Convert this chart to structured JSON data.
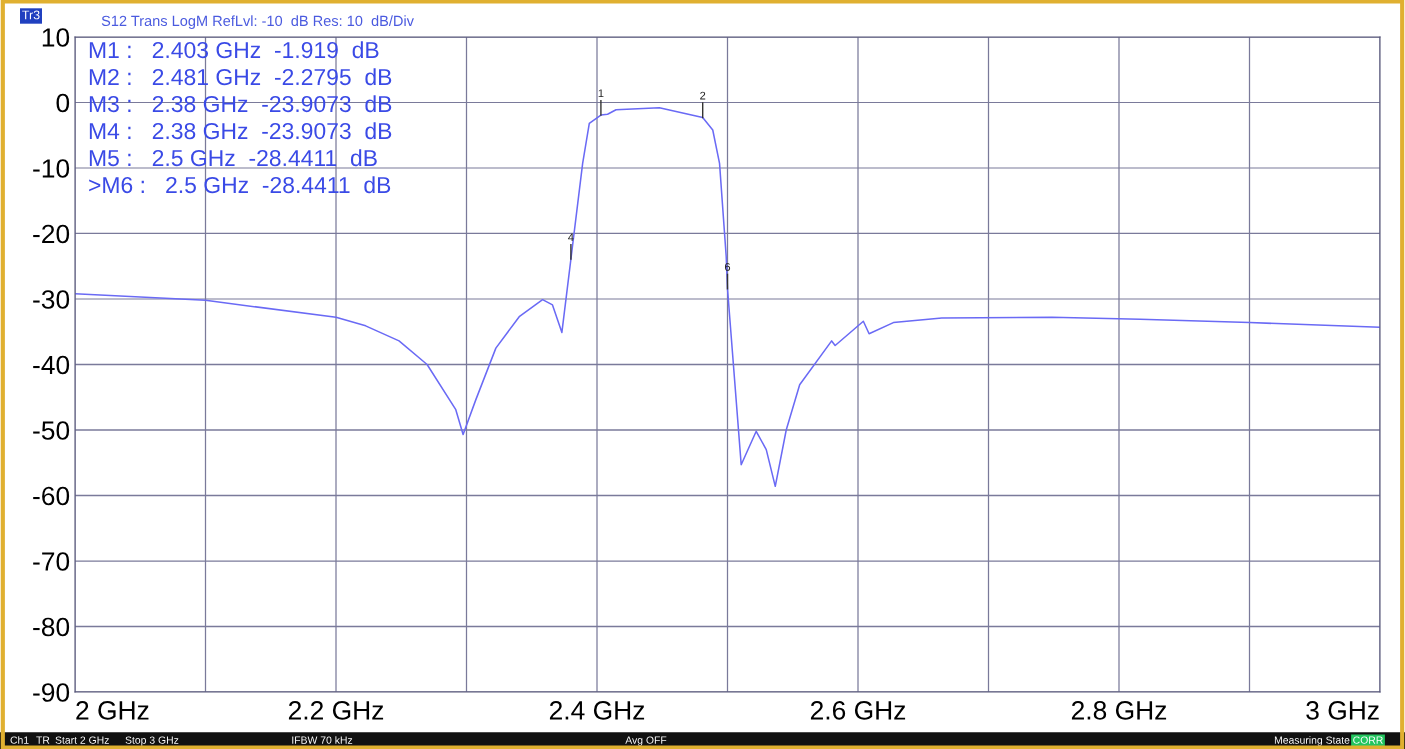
{
  "chart_data": {
    "type": "line",
    "title": "S12 Trans LogM RefLvl: -10  dB Res: 10  dB/Div",
    "x": [
      2.0,
      2.1,
      2.2,
      2.2227,
      2.2483,
      2.2698,
      2.2918,
      2.2974,
      2.3071,
      2.3225,
      2.3404,
      2.3583,
      2.3659,
      2.3731,
      2.38,
      2.389,
      2.3941,
      2.403,
      2.4081,
      2.4146,
      2.4478,
      2.481,
      2.4887,
      2.4939,
      2.499,
      2.5,
      2.5105,
      2.522,
      2.5297,
      2.5366,
      2.545,
      2.5553,
      2.5798,
      2.5825,
      2.6041,
      2.6085,
      2.6271,
      2.6642,
      2.7487,
      2.8162,
      2.9,
      3.0
    ],
    "series": [
      {
        "color": "#6a6af5",
        "values": [
          -29.2,
          -30.2,
          -32.8,
          -34.1,
          -36.4,
          -40.0,
          -46.9,
          -50.7,
          -45.4,
          -37.5,
          -32.7,
          -30.1,
          -30.9,
          -35.1,
          -23.9,
          -9.3,
          -3.2,
          -1.919,
          -1.8,
          -1.1,
          -0.8,
          -2.2795,
          -4.2,
          -9.3,
          -23.5,
          -28.4411,
          -55.3,
          -50.2,
          -53.0,
          -58.6,
          -50.0,
          -43.1,
          -36.4,
          -37.1,
          -33.4,
          -35.3,
          -33.6,
          -32.9,
          -32.8,
          -33.1,
          -33.6,
          -34.3
        ]
      }
    ],
    "xlim": [
      2.0,
      3.0
    ],
    "xticks": [
      {
        "value": 2.0,
        "label": "2 GHz"
      },
      {
        "value": 2.1,
        "label": null
      },
      {
        "value": 2.2,
        "label": "2.2 GHz"
      },
      {
        "value": 2.3,
        "label": null
      },
      {
        "value": 2.4,
        "label": "2.4 GHz"
      },
      {
        "value": 2.5,
        "label": null
      },
      {
        "value": 2.6,
        "label": "2.6 GHz"
      },
      {
        "value": 2.7,
        "label": null
      },
      {
        "value": 2.8,
        "label": "2.8 GHz"
      },
      {
        "value": 2.9,
        "label": null
      },
      {
        "value": 3.0,
        "label": "3 GHz"
      }
    ],
    "ylim": [
      -90,
      10
    ],
    "yticks": [
      -90,
      -80,
      -70,
      -60,
      -50,
      -40,
      -30,
      -20,
      -10,
      0,
      10
    ],
    "grid": true,
    "line_style": "solid",
    "marker": "none",
    "annotations": [
      {
        "text": "1",
        "x": 2.403,
        "y": -1.919
      },
      {
        "text": "2",
        "x": 2.481,
        "y": -2.2795
      },
      {
        "text": "4",
        "x": 2.38,
        "y": -23.9073
      },
      {
        "text": "6",
        "x": 2.5,
        "y": -28.4411
      },
      "M1 :   2.403 GHz  -1.919  dB",
      "M2 :   2.481 GHz  -2.2795  dB",
      "M3 :   2.38 GHz  -23.9073  dB",
      "M4 :   2.38 GHz  -23.9073  dB",
      "M5 :   2.5 GHz  -28.4411  dB",
      ">M6 :   2.5 GHz  -28.4411  dB",
      "Tr3",
      "Ch1",
      "TR",
      "Start 2 GHz",
      "Stop 3 GHz",
      "IFBW 70 kHz",
      "Avg OFF",
      "Measuring State",
      "CORR"
    ]
  }
}
